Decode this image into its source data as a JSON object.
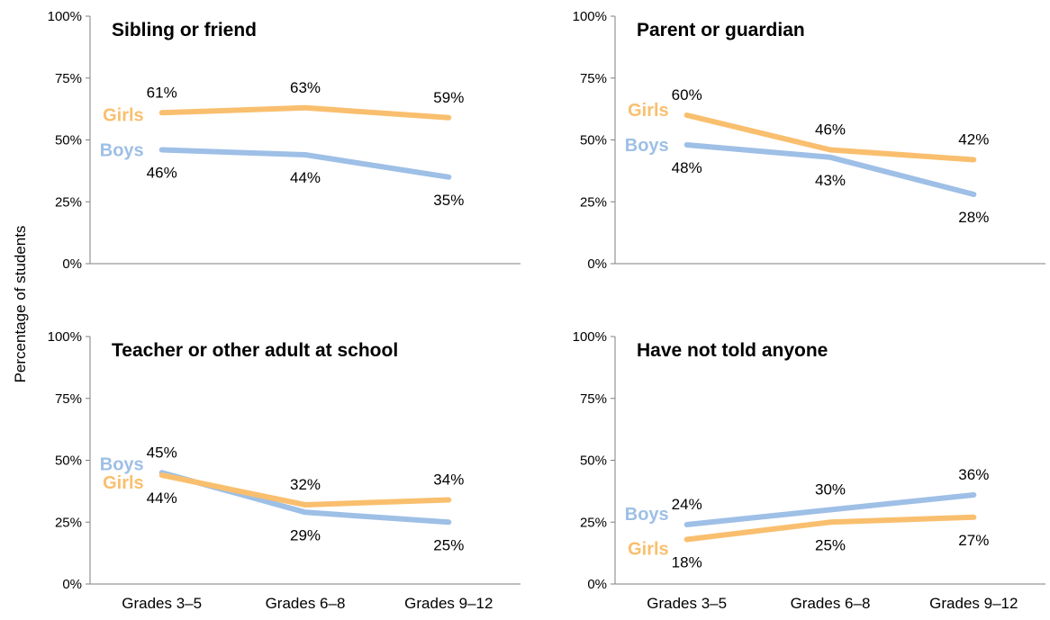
{
  "chart_data": {
    "type": "line",
    "ylabel": "Percentage of students",
    "categories": [
      "Grades 3–5",
      "Grades 6–8",
      "Grades 9–12"
    ],
    "ylim": [
      0,
      100
    ],
    "yticks": [
      "0%",
      "25%",
      "50%",
      "75%",
      "100%"
    ],
    "colors": {
      "Girls": "#f9bf6e",
      "Boys": "#9ebfe6"
    },
    "panels": [
      {
        "title": "Sibling or friend",
        "series": [
          {
            "name": "Girls",
            "values": [
              61,
              63,
              59
            ],
            "labels": [
              "61%",
              "63%",
              "59%"
            ]
          },
          {
            "name": "Boys",
            "values": [
              46,
              44,
              35
            ],
            "labels": [
              "46%",
              "44%",
              "35%"
            ]
          }
        ]
      },
      {
        "title": "Parent or guardian",
        "series": [
          {
            "name": "Girls",
            "values": [
              60,
              46,
              42
            ],
            "labels": [
              "60%",
              "46%",
              "42%"
            ]
          },
          {
            "name": "Boys",
            "values": [
              48,
              43,
              28
            ],
            "labels": [
              "48%",
              "43%",
              "28%"
            ]
          }
        ]
      },
      {
        "title": "Teacher or other adult at school",
        "series": [
          {
            "name": "Boys",
            "values": [
              45,
              29,
              25
            ],
            "labels": [
              "45%",
              "29%",
              "25%"
            ]
          },
          {
            "name": "Girls",
            "values": [
              44,
              32,
              34
            ],
            "labels": [
              "44%",
              "32%",
              "34%"
            ]
          }
        ]
      },
      {
        "title": "Have not told anyone",
        "series": [
          {
            "name": "Boys",
            "values": [
              24,
              30,
              36
            ],
            "labels": [
              "24%",
              "30%",
              "36%"
            ]
          },
          {
            "name": "Girls",
            "values": [
              18,
              25,
              27
            ],
            "labels": [
              "18%",
              "25%",
              "27%"
            ]
          }
        ]
      }
    ]
  }
}
